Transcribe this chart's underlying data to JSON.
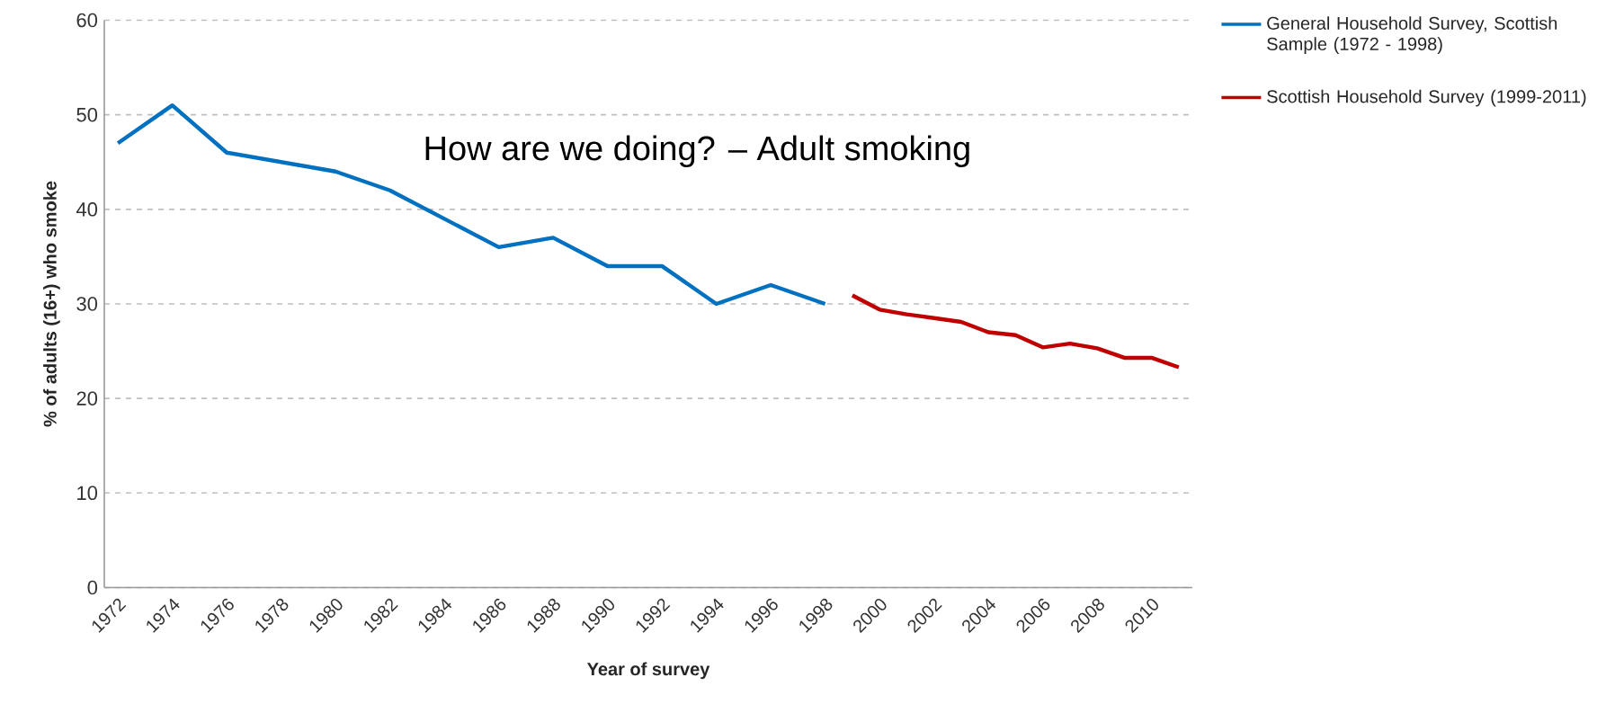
{
  "chart_data": {
    "type": "line",
    "title": "How are we doing? – Adult smoking",
    "xlabel": "Year of survey",
    "ylabel": "% of adults (16+) who smoke",
    "xlim": [
      1971.5,
      2011.5
    ],
    "xticks": [
      1972,
      1974,
      1976,
      1978,
      1980,
      1982,
      1984,
      1986,
      1988,
      1990,
      1992,
      1994,
      1996,
      1998,
      2000,
      2002,
      2004,
      2006,
      2008,
      2010
    ],
    "ylim": [
      0,
      60
    ],
    "yticks": [
      0,
      10,
      20,
      30,
      40,
      50,
      60
    ],
    "grid": "y",
    "legend": "right",
    "series": [
      {
        "name": "General Household Survey, Scottish Sample (1972 - 1998)",
        "color": "#0070c0",
        "x": [
          1972,
          1974,
          1976,
          1978,
          1980,
          1982,
          1984,
          1986,
          1988,
          1990,
          1992,
          1994,
          1996,
          1998
        ],
        "values": [
          47,
          51,
          46,
          45,
          44,
          42,
          39,
          36,
          37,
          34,
          34,
          30,
          32,
          30
        ]
      },
      {
        "name": "Scottish Household Survey (1999-2011)",
        "color": "#c00000",
        "x": [
          1999,
          2000,
          2001,
          2002,
          2003,
          2004,
          2005,
          2006,
          2007,
          2008,
          2009,
          2010,
          2011
        ],
        "values": [
          30.9,
          29.4,
          28.9,
          28.5,
          28.1,
          27.0,
          26.7,
          25.4,
          25.8,
          25.3,
          24.3,
          24.3,
          23.3
        ]
      }
    ]
  }
}
